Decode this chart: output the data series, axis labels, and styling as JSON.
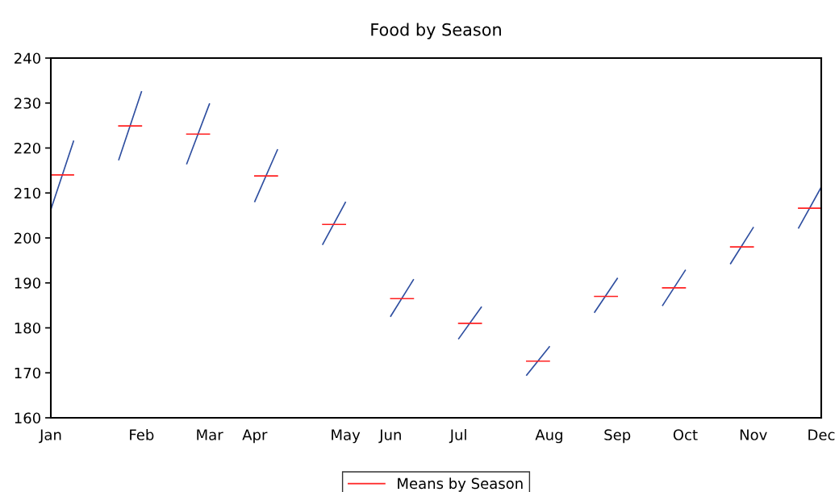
{
  "chart_data": {
    "type": "line",
    "title": "Food by Season",
    "categories": [
      "Jan",
      null,
      null,
      null,
      "Feb",
      null,
      null,
      "Mar",
      null,
      "Apr",
      null,
      null,
      null,
      "May",
      null,
      "Jun",
      null,
      null,
      "Jul",
      null,
      null,
      null,
      "Aug",
      null,
      null,
      "Sep",
      null,
      null,
      "Oct",
      null,
      null,
      "Nov",
      null,
      null,
      "Dec"
    ],
    "series": [
      {
        "color": "#2f4fa0",
        "values": [
          206.3,
          221.5,
          null,
          217.4,
          232.5,
          null,
          216.5,
          229.8,
          null,
          208.1,
          219.6,
          null,
          198.6,
          207.9,
          null,
          182.6,
          190.7,
          null,
          177.6,
          184.6,
          null,
          169.5,
          175.8,
          null,
          183.5,
          191.0,
          null,
          185.0,
          192.8,
          null,
          194.3,
          202.3,
          null,
          202.2,
          211.3
        ]
      },
      {
        "name": "Means by Season",
        "color": "#ff2020",
        "values": [
          214.0,
          214.0,
          null,
          224.9,
          224.9,
          null,
          223.1,
          223.1,
          null,
          213.8,
          213.8,
          null,
          203.0,
          203.0,
          null,
          186.5,
          186.5,
          null,
          181.0,
          181.0,
          null,
          172.6,
          172.6,
          null,
          187.0,
          187.0,
          null,
          188.9,
          188.9,
          null,
          198.0,
          198.0,
          null,
          206.6,
          206.6
        ]
      }
    ],
    "ylim": [
      160,
      240
    ],
    "yticks": [
      160,
      170,
      180,
      190,
      200,
      210,
      220,
      230,
      240
    ],
    "legend": "bottom",
    "marker": "none",
    "line_style": "solid"
  }
}
